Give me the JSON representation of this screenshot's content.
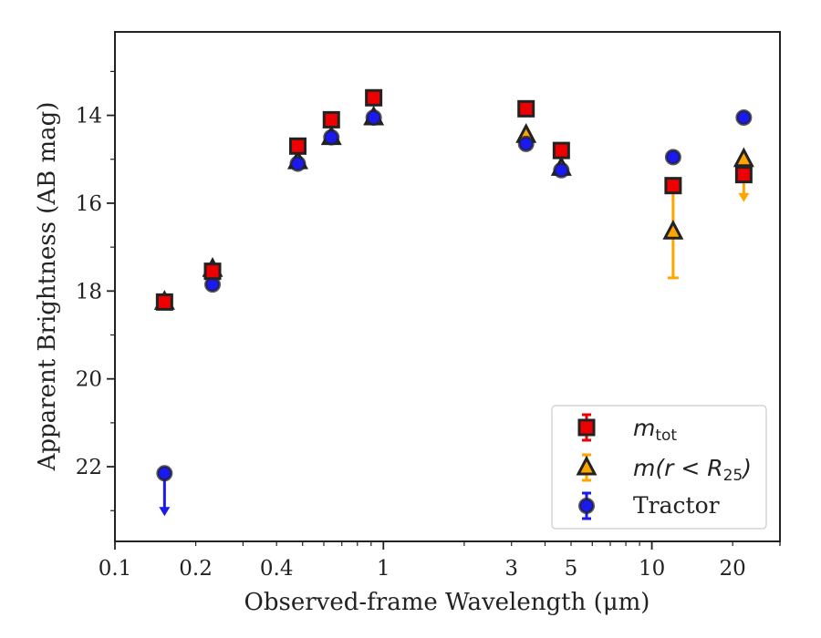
{
  "chart_data": {
    "type": "scatter",
    "title": "",
    "xlabel": "Observed-frame Wavelength (μm)",
    "ylabel": "Apparent Brightness (AB mag)",
    "xscale": "log",
    "xlim": [
      0.1,
      30
    ],
    "ylim": [
      23.7,
      12.1
    ],
    "y_inverted": true,
    "x_ticks": [
      0.1,
      0.2,
      0.4,
      1,
      3,
      5,
      10,
      20
    ],
    "x_tick_labels": [
      "0.1",
      "0.2",
      "0.4",
      "1",
      "3",
      "5",
      "10",
      "20"
    ],
    "y_ticks": [
      14,
      16,
      18,
      20,
      22
    ],
    "y_tick_labels": [
      "14",
      "16",
      "18",
      "20",
      "22"
    ],
    "grid": false,
    "legend_position": "lower-right",
    "legend": [
      {
        "label_main": "m",
        "label_sub": "tot",
        "marker": "square"
      },
      {
        "label_main": "m(r < R",
        "label_sub": "25",
        "label_end": ")",
        "marker": "triangle"
      },
      {
        "label_main": "Tractor",
        "marker": "circle"
      }
    ],
    "series": [
      {
        "marker": "triangle",
        "color": "#ffa500",
        "points": [
          {
            "x": 0.153,
            "y": 18.25
          },
          {
            "x": 0.231,
            "y": 17.5
          },
          {
            "x": 0.48,
            "y": 15.05
          },
          {
            "x": 0.64,
            "y": 14.5
          },
          {
            "x": 0.92,
            "y": 14.05
          },
          {
            "x": 3.4,
            "y": 14.45
          },
          {
            "x": 4.6,
            "y": 15.2
          },
          {
            "x": 12.0,
            "y": 16.65,
            "err_low": 1.05,
            "err_high": 1.05
          },
          {
            "x": 22.0,
            "y": 15.0,
            "upper_limit": true
          }
        ]
      },
      {
        "marker": "circle",
        "color": "#1a1aee",
        "points": [
          {
            "x": 0.153,
            "y": 22.15,
            "upper_limit": true
          },
          {
            "x": 0.231,
            "y": 17.85
          },
          {
            "x": 0.48,
            "y": 15.1
          },
          {
            "x": 0.64,
            "y": 14.5
          },
          {
            "x": 0.92,
            "y": 14.05
          },
          {
            "x": 3.4,
            "y": 14.65
          },
          {
            "x": 4.6,
            "y": 15.25
          },
          {
            "x": 12.0,
            "y": 14.95
          },
          {
            "x": 22.0,
            "y": 14.05
          }
        ]
      },
      {
        "marker": "square",
        "color": "#ee0000",
        "points": [
          {
            "x": 0.153,
            "y": 18.25
          },
          {
            "x": 0.231,
            "y": 17.55
          },
          {
            "x": 0.48,
            "y": 14.7
          },
          {
            "x": 0.64,
            "y": 14.1
          },
          {
            "x": 0.92,
            "y": 13.6
          },
          {
            "x": 3.4,
            "y": 13.85
          },
          {
            "x": 4.6,
            "y": 14.8
          },
          {
            "x": 12.0,
            "y": 15.6
          },
          {
            "x": 22.0,
            "y": 15.35
          }
        ]
      }
    ]
  }
}
